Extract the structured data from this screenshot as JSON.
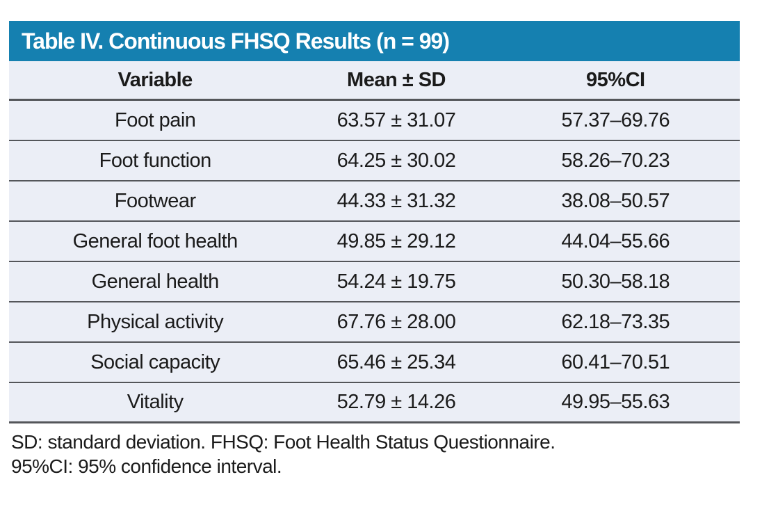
{
  "colors": {
    "title_bar_bg": "#1580b0",
    "title_text": "#ffffff",
    "row_bg": "#ebeef6",
    "rule": "#54565a",
    "body_text": "#1b1b1b"
  },
  "table": {
    "title": "Table IV. Continuous FHSQ Results (n = 99)",
    "columns": [
      "Variable",
      "Mean ± SD",
      "95%CI"
    ],
    "rows": [
      [
        "Foot pain",
        "63.57 ± 31.07",
        "57.37–69.76"
      ],
      [
        "Foot function",
        "64.25 ± 30.02",
        "58.26–70.23"
      ],
      [
        "Footwear",
        "44.33 ± 31.32",
        "38.08–50.57"
      ],
      [
        "General foot health",
        "49.85 ± 29.12",
        "44.04–55.66"
      ],
      [
        "General health",
        "54.24 ± 19.75",
        "50.30–58.18"
      ],
      [
        "Physical activity",
        "67.76 ± 28.00",
        "62.18–73.35"
      ],
      [
        "Social capacity",
        "65.46 ± 25.34",
        "60.41–70.51"
      ],
      [
        "Vitality",
        "52.79 ± 14.26",
        "49.95–55.63"
      ]
    ],
    "footnotes": [
      "SD: standard deviation. FHSQ: Foot Health Status Questionnaire.",
      "95%CI: 95% confidence interval."
    ]
  },
  "chart_data": {
    "type": "table",
    "title": "Table IV. Continuous FHSQ Results (n = 99)",
    "n": 99,
    "columns": [
      "Variable",
      "Mean ± SD",
      "95%CI"
    ],
    "rows": [
      {
        "variable": "Foot pain",
        "mean": 63.57,
        "sd": 31.07,
        "ci_low": 57.37,
        "ci_high": 69.76
      },
      {
        "variable": "Foot function",
        "mean": 64.25,
        "sd": 30.02,
        "ci_low": 58.26,
        "ci_high": 70.23
      },
      {
        "variable": "Footwear",
        "mean": 44.33,
        "sd": 31.32,
        "ci_low": 38.08,
        "ci_high": 50.57
      },
      {
        "variable": "General foot health",
        "mean": 49.85,
        "sd": 29.12,
        "ci_low": 44.04,
        "ci_high": 55.66
      },
      {
        "variable": "General health",
        "mean": 54.24,
        "sd": 19.75,
        "ci_low": 50.3,
        "ci_high": 58.18
      },
      {
        "variable": "Physical activity",
        "mean": 67.76,
        "sd": 28.0,
        "ci_low": 62.18,
        "ci_high": 73.35
      },
      {
        "variable": "Social capacity",
        "mean": 65.46,
        "sd": 25.34,
        "ci_low": 60.41,
        "ci_high": 70.51
      },
      {
        "variable": "Vitality",
        "mean": 52.79,
        "sd": 14.26,
        "ci_low": 49.95,
        "ci_high": 55.63
      }
    ]
  }
}
